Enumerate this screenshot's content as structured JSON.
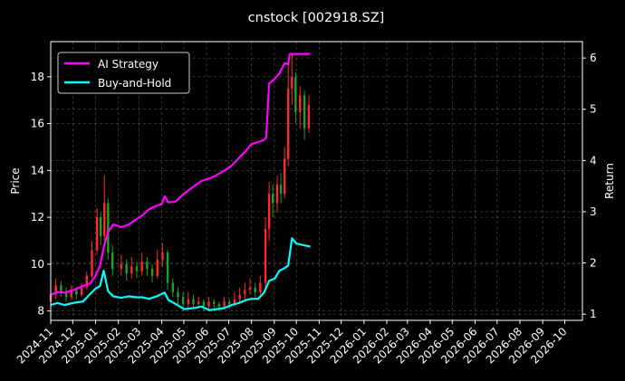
{
  "title": "cnstock [002918.SZ]",
  "chart_data": {
    "type": "line",
    "title": "cnstock [002918.SZ]",
    "xlabel": "",
    "ylabel": "Price",
    "y2label": "Return",
    "x_ticks": [
      "2024-11",
      "2024-12",
      "2025-01",
      "2025-02",
      "2025-03",
      "2025-04",
      "2025-05",
      "2025-06",
      "2025-07",
      "2025-08",
      "2025-09",
      "2025-10",
      "2025-11",
      "2025-12",
      "2026-01",
      "2026-02",
      "2026-03",
      "2026-04",
      "2026-05",
      "2026-06",
      "2026-07",
      "2026-08",
      "2026-09",
      "2026-10"
    ],
    "xlim": [
      "2024-11-01",
      "2026-10-25"
    ],
    "y_ticks": [
      8,
      10,
      12,
      14,
      16,
      18
    ],
    "ylim": [
      7.6,
      19.5
    ],
    "y2_ticks": [
      1,
      2,
      3,
      4,
      5,
      6
    ],
    "y2lim": [
      0.88,
      6.32
    ],
    "grid": true,
    "legend_position": "top-left",
    "colors": {
      "background": "#000000",
      "ai_strategy": "#ff00ff",
      "buy_and_hold": "#00ffff",
      "candle_up": "#ff2a2a",
      "candle_down": "#1fa21f",
      "text": "#ffffff",
      "grid": "#555555"
    },
    "series": [
      {
        "name": "AI Strategy",
        "axis": "right",
        "points": [
          [
            "2024-11-01",
            1.38
          ],
          [
            "2024-11-10",
            1.43
          ],
          [
            "2024-11-20",
            1.42
          ],
          [
            "2024-12-01",
            1.47
          ],
          [
            "2024-12-15",
            1.55
          ],
          [
            "2024-12-25",
            1.6
          ],
          [
            "2025-01-01",
            1.75
          ],
          [
            "2025-01-07",
            1.95
          ],
          [
            "2025-01-12",
            2.3
          ],
          [
            "2025-01-18",
            2.6
          ],
          [
            "2025-01-25",
            2.75
          ],
          [
            "2025-02-05",
            2.7
          ],
          [
            "2025-02-15",
            2.75
          ],
          [
            "2025-02-25",
            2.85
          ],
          [
            "2025-03-05",
            2.92
          ],
          [
            "2025-03-15",
            3.05
          ],
          [
            "2025-03-25",
            3.12
          ],
          [
            "2025-04-01",
            3.15
          ],
          [
            "2025-04-05",
            3.3
          ],
          [
            "2025-04-10",
            3.18
          ],
          [
            "2025-04-20",
            3.2
          ],
          [
            "2025-05-01",
            3.35
          ],
          [
            "2025-05-15",
            3.5
          ],
          [
            "2025-05-25",
            3.6
          ],
          [
            "2025-06-05",
            3.65
          ],
          [
            "2025-06-15",
            3.72
          ],
          [
            "2025-06-25",
            3.8
          ],
          [
            "2025-07-05",
            3.9
          ],
          [
            "2025-07-15",
            4.05
          ],
          [
            "2025-07-25",
            4.2
          ],
          [
            "2025-08-01",
            4.32
          ],
          [
            "2025-08-10",
            4.36
          ],
          [
            "2025-08-18",
            4.4
          ],
          [
            "2025-08-21",
            4.45
          ],
          [
            "2025-08-25",
            5.5
          ],
          [
            "2025-09-02",
            5.6
          ],
          [
            "2025-09-08",
            5.7
          ],
          [
            "2025-09-15",
            5.9
          ],
          [
            "2025-09-20",
            5.88
          ],
          [
            "2025-09-22",
            6.08
          ],
          [
            "2025-10-05",
            6.08
          ],
          [
            "2025-10-20",
            6.08
          ]
        ]
      },
      {
        "name": "Buy-and-Hold",
        "axis": "right",
        "points": [
          [
            "2024-11-01",
            1.18
          ],
          [
            "2024-11-10",
            1.22
          ],
          [
            "2024-11-20",
            1.18
          ],
          [
            "2024-12-01",
            1.22
          ],
          [
            "2024-12-15",
            1.25
          ],
          [
            "2024-12-25",
            1.4
          ],
          [
            "2025-01-01",
            1.5
          ],
          [
            "2025-01-07",
            1.55
          ],
          [
            "2025-01-12",
            1.85
          ],
          [
            "2025-01-18",
            1.45
          ],
          [
            "2025-01-25",
            1.35
          ],
          [
            "2025-02-05",
            1.32
          ],
          [
            "2025-02-15",
            1.35
          ],
          [
            "2025-02-25",
            1.33
          ],
          [
            "2025-03-05",
            1.33
          ],
          [
            "2025-03-15",
            1.3
          ],
          [
            "2025-03-25",
            1.35
          ],
          [
            "2025-04-05",
            1.42
          ],
          [
            "2025-04-10",
            1.28
          ],
          [
            "2025-04-20",
            1.2
          ],
          [
            "2025-05-01",
            1.1
          ],
          [
            "2025-05-15",
            1.12
          ],
          [
            "2025-05-25",
            1.15
          ],
          [
            "2025-06-05",
            1.08
          ],
          [
            "2025-06-15",
            1.1
          ],
          [
            "2025-06-25",
            1.12
          ],
          [
            "2025-07-05",
            1.18
          ],
          [
            "2025-07-15",
            1.22
          ],
          [
            "2025-07-25",
            1.28
          ],
          [
            "2025-08-01",
            1.3
          ],
          [
            "2025-08-10",
            1.3
          ],
          [
            "2025-08-18",
            1.42
          ],
          [
            "2025-08-25",
            1.65
          ],
          [
            "2025-09-02",
            1.7
          ],
          [
            "2025-09-08",
            1.85
          ],
          [
            "2025-09-15",
            1.9
          ],
          [
            "2025-09-20",
            1.95
          ],
          [
            "2025-09-25",
            2.48
          ],
          [
            "2025-10-01",
            2.38
          ],
          [
            "2025-10-10",
            2.35
          ],
          [
            "2025-10-20",
            2.32
          ]
        ]
      }
    ],
    "price_candles": [
      [
        "2024-11-01",
        8.4,
        8.7,
        8.3,
        8.9
      ],
      [
        "2024-11-08",
        8.7,
        9.1,
        8.5,
        9.4
      ],
      [
        "2024-11-15",
        9.1,
        8.8,
        8.6,
        9.3
      ],
      [
        "2024-11-22",
        8.8,
        8.6,
        8.4,
        9.0
      ],
      [
        "2024-11-29",
        8.6,
        8.9,
        8.5,
        9.1
      ],
      [
        "2024-12-06",
        8.9,
        8.7,
        8.5,
        9.0
      ],
      [
        "2024-12-13",
        8.7,
        9.0,
        8.6,
        9.2
      ],
      [
        "2024-12-20",
        9.0,
        9.5,
        8.9,
        9.7
      ],
      [
        "2024-12-27",
        9.5,
        10.6,
        9.4,
        11.0
      ],
      [
        "2025-01-03",
        10.6,
        12.0,
        10.4,
        12.4
      ],
      [
        "2025-01-08",
        12.0,
        11.2,
        10.8,
        12.2
      ],
      [
        "2025-01-13",
        11.2,
        12.6,
        11.0,
        13.8
      ],
      [
        "2025-01-18",
        12.6,
        10.5,
        10.2,
        12.8
      ],
      [
        "2025-01-24",
        10.5,
        9.8,
        9.5,
        10.8
      ],
      [
        "2025-02-05",
        9.8,
        10.0,
        9.5,
        10.4
      ],
      [
        "2025-02-12",
        10.0,
        9.6,
        9.3,
        10.2
      ],
      [
        "2025-02-19",
        9.6,
        9.9,
        9.4,
        10.3
      ],
      [
        "2025-02-26",
        9.9,
        9.7,
        9.4,
        10.1
      ],
      [
        "2025-03-05",
        9.7,
        10.1,
        9.5,
        10.5
      ],
      [
        "2025-03-12",
        10.1,
        9.8,
        9.5,
        10.3
      ],
      [
        "2025-03-19",
        9.8,
        9.5,
        9.2,
        10.0
      ],
      [
        "2025-03-26",
        9.5,
        10.2,
        9.4,
        10.6
      ],
      [
        "2025-04-02",
        10.2,
        10.5,
        9.9,
        10.9
      ],
      [
        "2025-04-09",
        10.5,
        9.2,
        8.9,
        10.6
      ],
      [
        "2025-04-16",
        9.2,
        8.8,
        8.6,
        9.4
      ],
      [
        "2025-04-23",
        8.8,
        8.6,
        8.3,
        9.0
      ],
      [
        "2025-04-30",
        8.6,
        8.3,
        8.0,
        8.8
      ],
      [
        "2025-05-07",
        8.3,
        8.5,
        8.1,
        8.8
      ],
      [
        "2025-05-14",
        8.5,
        8.3,
        8.1,
        8.7
      ],
      [
        "2025-05-21",
        8.3,
        8.4,
        8.1,
        8.6
      ],
      [
        "2025-05-28",
        8.4,
        8.2,
        8.0,
        8.5
      ],
      [
        "2025-06-04",
        8.2,
        8.4,
        8.1,
        8.6
      ],
      [
        "2025-06-11",
        8.4,
        8.3,
        8.1,
        8.5
      ],
      [
        "2025-06-18",
        8.3,
        8.2,
        8.0,
        8.4
      ],
      [
        "2025-06-25",
        8.2,
        8.4,
        8.1,
        8.6
      ],
      [
        "2025-07-02",
        8.4,
        8.3,
        8.1,
        8.5
      ],
      [
        "2025-07-09",
        8.3,
        8.5,
        8.2,
        8.8
      ],
      [
        "2025-07-16",
        8.5,
        8.7,
        8.3,
        9.0
      ],
      [
        "2025-07-23",
        8.7,
        8.9,
        8.5,
        9.2
      ],
      [
        "2025-07-30",
        8.9,
        9.0,
        8.7,
        9.4
      ],
      [
        "2025-08-06",
        9.0,
        8.8,
        8.6,
        9.2
      ],
      [
        "2025-08-13",
        8.8,
        9.2,
        8.7,
        9.5
      ],
      [
        "2025-08-20",
        9.2,
        11.5,
        9.0,
        12.0
      ],
      [
        "2025-08-25",
        11.5,
        13.0,
        11.0,
        13.5
      ],
      [
        "2025-08-30",
        13.0,
        12.6,
        12.0,
        13.4
      ],
      [
        "2025-09-05",
        12.6,
        13.4,
        12.2,
        13.8
      ],
      [
        "2025-09-10",
        13.4,
        13.0,
        12.6,
        13.9
      ],
      [
        "2025-09-15",
        13.0,
        14.5,
        12.8,
        15.0
      ],
      [
        "2025-09-20",
        14.5,
        17.5,
        14.2,
        18.5
      ],
      [
        "2025-09-25",
        17.5,
        18.0,
        16.8,
        19.0
      ],
      [
        "2025-09-30",
        18.0,
        16.5,
        16.0,
        18.2
      ],
      [
        "2025-10-06",
        16.5,
        17.2,
        15.8,
        17.6
      ],
      [
        "2025-10-12",
        17.2,
        15.8,
        15.3,
        17.4
      ],
      [
        "2025-10-18",
        15.8,
        16.8,
        15.6,
        17.2
      ]
    ]
  }
}
